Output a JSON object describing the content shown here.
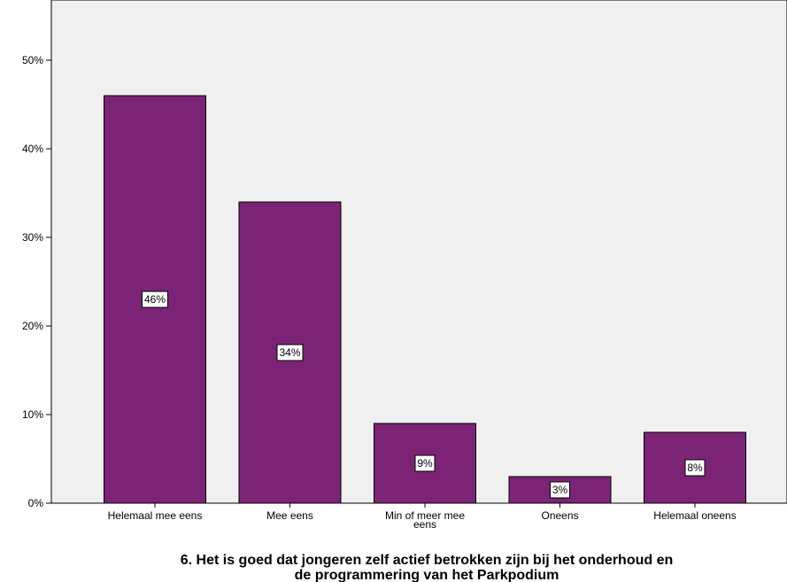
{
  "chart_data": {
    "type": "bar",
    "categories": [
      [
        "Helemaal mee eens"
      ],
      [
        "Mee eens"
      ],
      [
        "Min of meer mee",
        "eens"
      ],
      [
        "Oneens"
      ],
      [
        "Helemaal oneens"
      ]
    ],
    "values": [
      46,
      34,
      9,
      3,
      8
    ],
    "value_labels": [
      "46%",
      "34%",
      "9%",
      "3%",
      "8%"
    ],
    "ylim": [
      0,
      55
    ],
    "y_ticks": [
      0,
      10,
      20,
      30,
      40,
      50
    ],
    "y_tick_labels": [
      "0%",
      "10%",
      "20%",
      "30%",
      "40%",
      "50%"
    ],
    "title_lines": [
      "6. Het is goed dat jongeren zelf actief betrokken zijn bij het onderhoud en",
      "de programmering van het Parkpodium"
    ],
    "grid": false,
    "colors": {
      "bar": "#7b2476",
      "plot_background": "#f0f0f0",
      "label_background": "#ffffff"
    }
  }
}
